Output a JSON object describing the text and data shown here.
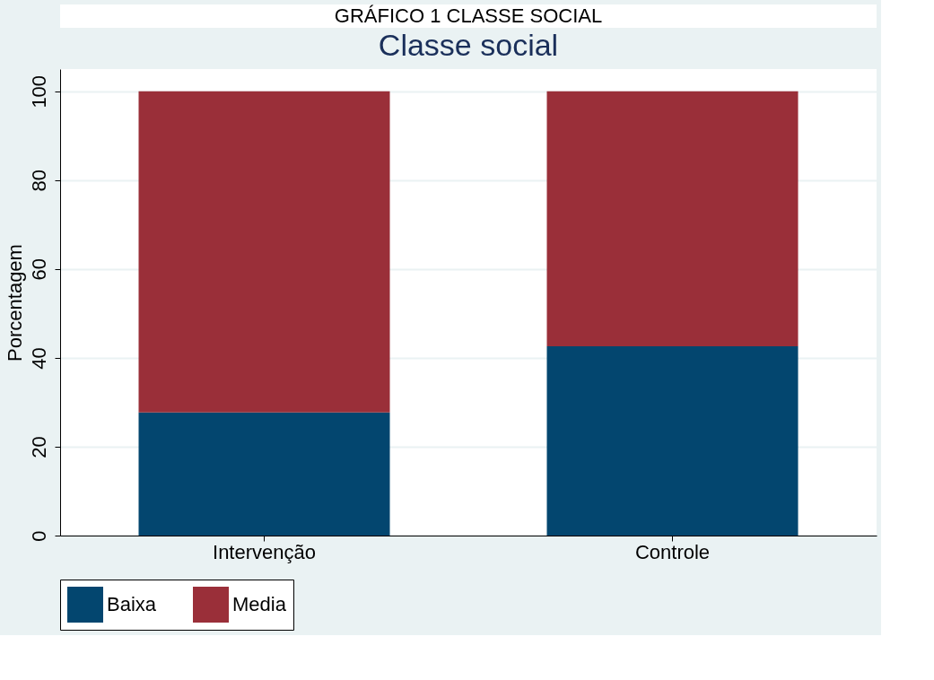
{
  "chart_data": {
    "type": "bar",
    "title": "Classe social",
    "ylabel": "Porcentagem",
    "annotations": [
      "GRÁFICO 1 CLASSE SOCIAL"
    ],
    "categories": [
      "Intervenção",
      "Controle"
    ],
    "stacked": true,
    "series": [
      {
        "name": "Baixa",
        "color": "#03466f",
        "values": [
          27.7,
          42.6
        ]
      },
      {
        "name": "Media",
        "color": "#9a2f39",
        "values": [
          72.3,
          57.4
        ]
      }
    ],
    "ylim": [
      0,
      105
    ],
    "yticks": [
      0,
      20,
      40,
      60,
      80,
      100
    ],
    "grid": "y",
    "legend": "bottom"
  }
}
